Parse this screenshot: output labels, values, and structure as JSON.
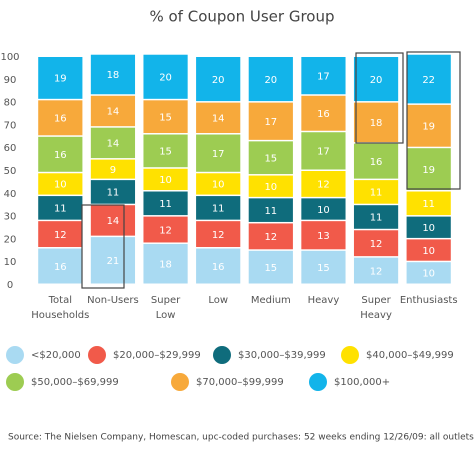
{
  "chart_data": {
    "type": "stacked_bar",
    "title": "% of Coupon User Group",
    "categories": [
      "Total Households",
      "Non-Users",
      "Super Low",
      "Low",
      "Medium",
      "Heavy",
      "Super Heavy",
      "Enthusiasts"
    ],
    "series": [
      {
        "name": "<$20,000",
        "color": "#a9daf2",
        "values": [
          16,
          21,
          18,
          16,
          15,
          15,
          12,
          10
        ]
      },
      {
        "name": "$20,000–$29,999",
        "color": "#f15a4a",
        "values": [
          12,
          14,
          12,
          12,
          12,
          13,
          12,
          10
        ]
      },
      {
        "name": "$30,000–$39,999",
        "color": "#0f6c7c",
        "values": [
          11,
          11,
          11,
          11,
          11,
          10,
          11,
          10
        ]
      },
      {
        "name": "$40,000–$49,999",
        "color": "#ffe100",
        "values": [
          10,
          9,
          10,
          10,
          10,
          12,
          11,
          11
        ]
      },
      {
        "name": "$50,000–$69,999",
        "color": "#9dcc52",
        "values": [
          16,
          14,
          15,
          17,
          15,
          17,
          16,
          19
        ]
      },
      {
        "name": "$70,000–$99,999",
        "color": "#f7a93b",
        "values": [
          16,
          14,
          15,
          14,
          17,
          16,
          18,
          19
        ]
      },
      {
        "name": "$100,000+",
        "color": "#12b4ea",
        "values": [
          19,
          18,
          20,
          20,
          20,
          17,
          20,
          22
        ]
      }
    ],
    "ylim": [
      0,
      100
    ],
    "yticks": [
      0,
      10,
      20,
      30,
      40,
      50,
      60,
      70,
      80,
      90,
      100
    ],
    "source": "Source: The Nielsen Company, Homescan, upc-coded purchases: 52 weeks ending 12/26/09: all outlets"
  }
}
